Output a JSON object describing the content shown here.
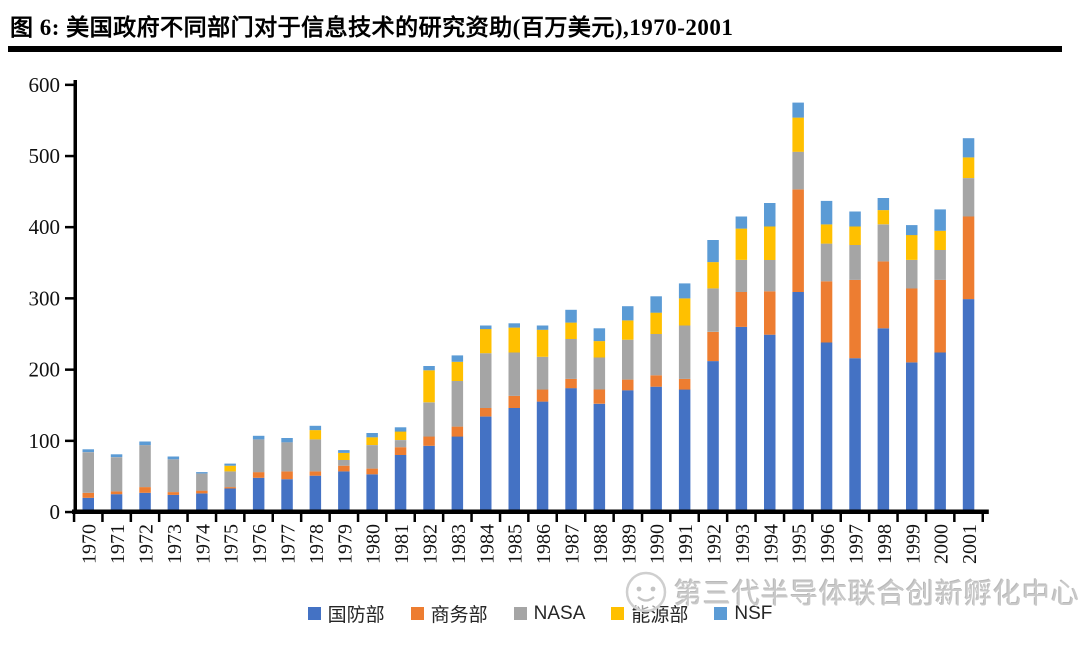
{
  "title": "图 6:  美国政府不同部门对于信息技术的研究资助(百万美元),1970-2001",
  "watermark": {
    "text": "第三代半导体联合创新孵化中心"
  },
  "chart_data": {
    "type": "bar",
    "stacked": true,
    "title": "美国政府不同部门对于信息技术的研究资助(百万美元),1970-2001",
    "xlabel": "",
    "ylabel": "",
    "ylim": [
      0,
      600
    ],
    "yticks": [
      0,
      100,
      200,
      300,
      400,
      500,
      600
    ],
    "grid": false,
    "legend_position": "bottom",
    "categories": [
      1970,
      1971,
      1972,
      1973,
      1974,
      1975,
      1976,
      1977,
      1978,
      1979,
      1980,
      1981,
      1982,
      1983,
      1984,
      1985,
      1986,
      1987,
      1988,
      1989,
      1990,
      1991,
      1992,
      1993,
      1994,
      1995,
      1996,
      1997,
      1998,
      1999,
      2000,
      2001
    ],
    "series": [
      {
        "key": "dod",
        "name": "国防部",
        "color": "#4472C4",
        "values": [
          20,
          25,
          27,
          24,
          26,
          33,
          48,
          46,
          51,
          57,
          53,
          80,
          93,
          106,
          134,
          146,
          155,
          174,
          152,
          171,
          176,
          172,
          212,
          260,
          249,
          309,
          238,
          216,
          258,
          210,
          224,
          299
        ]
      },
      {
        "key": "doc",
        "name": "商务部",
        "color": "#ED7D31",
        "values": [
          7,
          4,
          8,
          4,
          4,
          2,
          8,
          11,
          6,
          8,
          8,
          11,
          13,
          14,
          12,
          17,
          17,
          13,
          20,
          15,
          16,
          15,
          41,
          49,
          61,
          144,
          86,
          110,
          94,
          104,
          102,
          116
        ]
      },
      {
        "key": "nasa",
        "name": "NASA",
        "color": "#A5A5A5",
        "values": [
          57,
          48,
          59,
          46,
          24,
          22,
          46,
          41,
          45,
          8,
          33,
          10,
          48,
          64,
          77,
          61,
          46,
          56,
          45,
          56,
          58,
          75,
          61,
          45,
          44,
          53,
          53,
          49,
          52,
          40,
          42,
          54
        ]
      },
      {
        "key": "doe",
        "name": "能源部",
        "color": "#FFC000",
        "values": [
          0,
          0,
          0,
          0,
          0,
          8,
          0,
          0,
          13,
          10,
          11,
          12,
          45,
          27,
          34,
          35,
          38,
          23,
          23,
          27,
          30,
          38,
          37,
          44,
          47,
          48,
          27,
          26,
          20,
          35,
          27,
          29
        ]
      },
      {
        "key": "nsf",
        "name": "NSF",
        "color": "#5B9BD5",
        "values": [
          4,
          4,
          5,
          4,
          2,
          3,
          5,
          6,
          6,
          4,
          6,
          6,
          6,
          9,
          5,
          6,
          6,
          18,
          18,
          20,
          23,
          21,
          31,
          17,
          33,
          21,
          33,
          21,
          17,
          14,
          30,
          27
        ]
      }
    ]
  }
}
